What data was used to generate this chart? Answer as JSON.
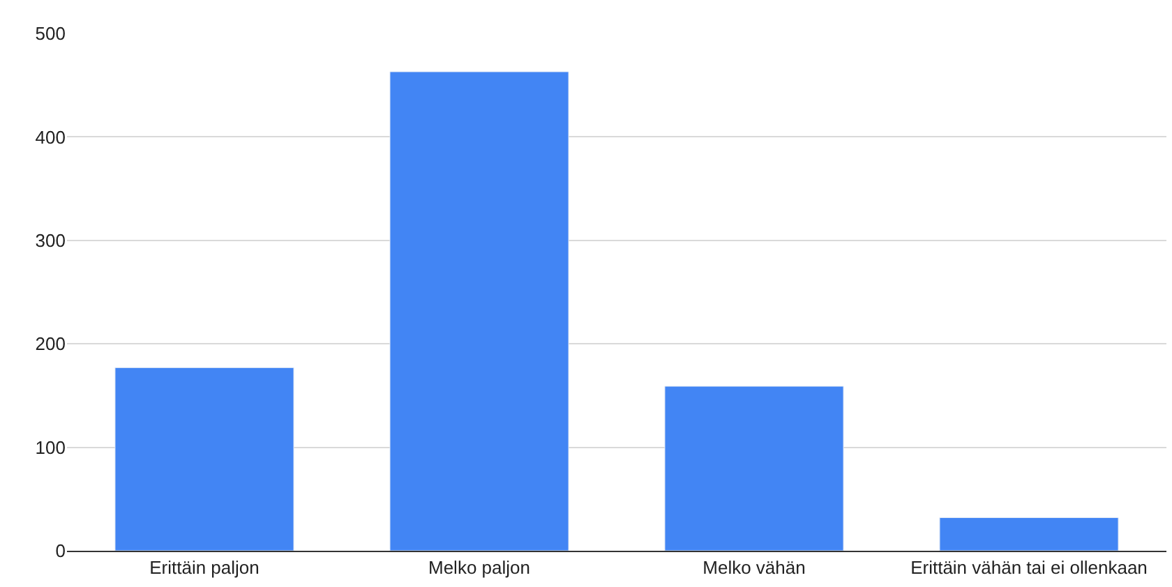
{
  "chart_data": {
    "type": "bar",
    "categories": [
      "Erittäin paljon",
      "Melko paljon",
      "Melko vähän",
      "Erittäin vähän tai ei ollenkaan"
    ],
    "values": [
      177,
      463,
      159,
      32
    ],
    "color": "#4285f4",
    "ylim": [
      0,
      500
    ],
    "yticks": [
      0,
      100,
      200,
      300,
      400,
      500
    ],
    "grid": "y"
  }
}
